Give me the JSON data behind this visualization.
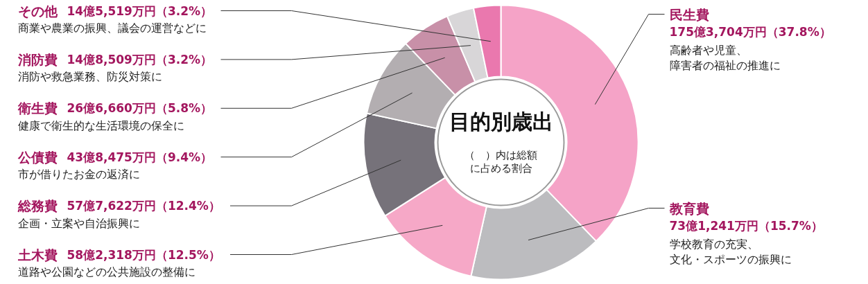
{
  "chart_data": {
    "type": "donut",
    "title": "目的別歳出",
    "subtitle": "（　）内は総額に占める割合",
    "categories": [
      "民生費",
      "教育費",
      "土木費",
      "総務費",
      "公債費",
      "衛生費",
      "消防費",
      "その他"
    ],
    "values": [
      37.8,
      15.7,
      12.5,
      12.4,
      9.4,
      5.8,
      3.2,
      3.2
    ],
    "colors": [
      "#f5a3c7",
      "#bcbcbf",
      "#f6a8c7",
      "#76727a",
      "#b3aeb1",
      "#c890a8",
      "#d8d6d8",
      "#ea78ae"
    ],
    "value_labels": [
      "175億3,704万円（37.8%）",
      "73億1,241万円（15.7%）",
      "58億2,318万円（12.5%）",
      "57億7,622万円（12.4%）",
      "43億8,475万円（9.4%）",
      "26億6,660万円（5.8%）",
      "14億8,509万円（3.2%）",
      "14億5,519万円（3.2%）"
    ],
    "annotations": [
      "高齢者や児童、障害者の福祉の推進に",
      "学校教育の充実、文化・スポーツの振興に",
      "道路や公園などの公共施設の整備に",
      "企画・立案や自治振興に",
      "市が借りたお金の返済に",
      "健康で衛生的な生活環境の保全に",
      "消防や救急業務、防災対策に",
      "商業や農業の振興、議会の運営などに"
    ]
  }
}
